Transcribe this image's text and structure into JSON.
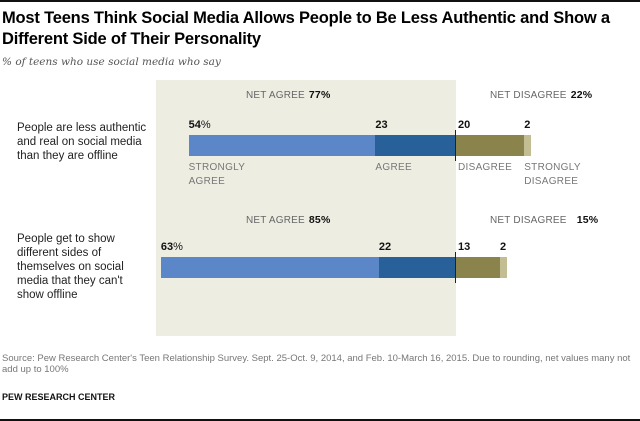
{
  "title": "Most Teens Think Social Media Allows People to Be Less Authentic and Show a Different Side of Their Personality",
  "subtitle": "% of teens who use social media who say",
  "source": "Source: Pew Research Center's Teen Relationship Survey. Sept. 25-Oct. 9, 2014, and Feb. 10-March 16, 2015. Due to rounding, net values many not add up to 100%",
  "organization": "PEW RESEARCH CENTER",
  "colors": {
    "strongly_agree": "#5b87c9",
    "agree": "#28609a",
    "disagree": "#8a834c",
    "strongly_disagree": "#c3bd93",
    "panel": "#eeede2"
  },
  "chart_data": {
    "type": "bar",
    "orientation": "horizontal-diverging-stacked",
    "title": "Most Teens Think Social Media Allows People to Be Less Authentic and Show a Different Side of Their Personality",
    "subtitle": "% of teens who use social media who say",
    "units": "%",
    "series_names": [
      "Strongly agree",
      "Agree",
      "Disagree",
      "Strongly disagree"
    ],
    "category_labels": {
      "strongly_agree": "STRONGLY AGREE",
      "agree": "AGREE",
      "disagree": "DISAGREE",
      "strongly_disagree": "STRONGLY DISAGREE"
    },
    "net_agree_label": "NET AGREE",
    "net_disagree_label": "NET DISAGREE",
    "rows": [
      {
        "label": "People are less authentic and real on social media than they are offline",
        "strongly_agree": 54,
        "agree": 23,
        "disagree": 20,
        "strongly_disagree": 2,
        "net_agree": "77%",
        "net_disagree": "22%",
        "value_labels": [
          "54%",
          "23",
          "20",
          "2"
        ]
      },
      {
        "label": "People get to show different sides of themselves on social media that they can't show offline",
        "strongly_agree": 63,
        "agree": 22,
        "disagree": 13,
        "strongly_disagree": 2,
        "net_agree": "85%",
        "net_disagree": "15%",
        "value_labels": [
          "63%",
          "22",
          "13",
          "2"
        ]
      }
    ]
  }
}
